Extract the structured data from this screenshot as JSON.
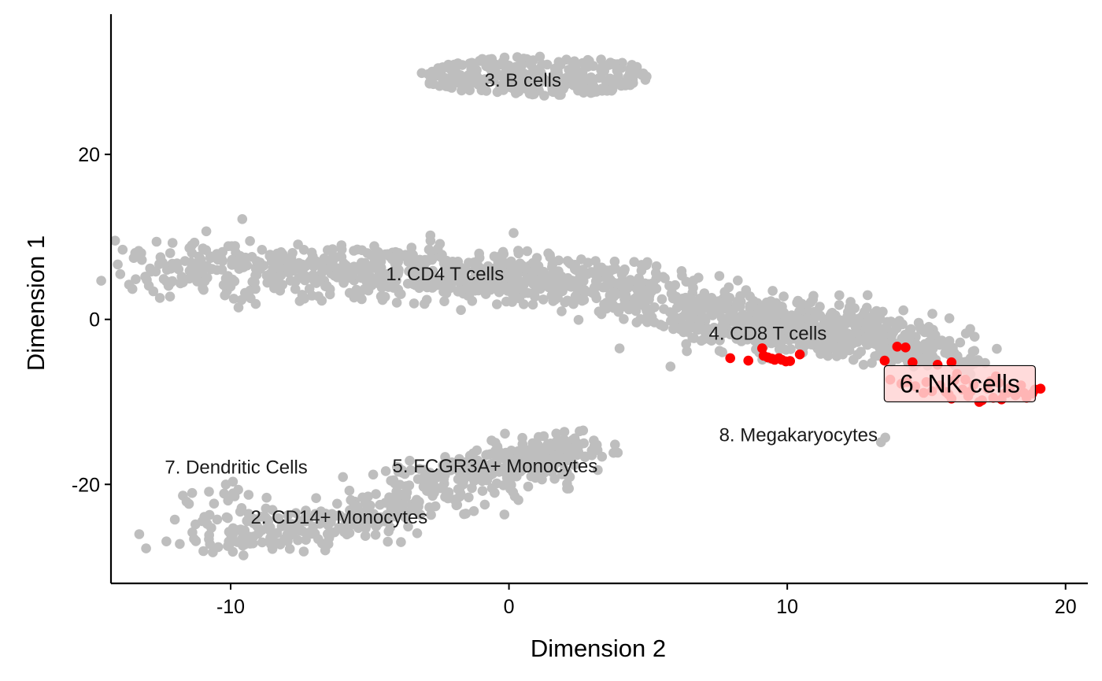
{
  "chart_data": {
    "type": "scatter",
    "xlabel": "Dimension 2",
    "ylabel": "Dimension 1",
    "xlim": [
      -14.3,
      20.8
    ],
    "ylim": [
      -32,
      37
    ],
    "x_ticks": [
      -10,
      0,
      10,
      20
    ],
    "y_ticks": [
      -20,
      0,
      20
    ],
    "x_tick_labels": [
      "-10",
      "0",
      "10",
      "20"
    ],
    "y_tick_labels": [
      "-20",
      "0",
      "20"
    ],
    "grid": false,
    "colors": {
      "background_points": "#bebebe",
      "highlight_points": "#ff0000",
      "highlight_label_fill": "#ffd5d5",
      "axis": "#000000"
    },
    "clusters": [
      {
        "label": "1. CD4 T cells",
        "label_pos": [
          -2.3,
          5.5
        ],
        "shape": "band",
        "path": [
          [
            -12.5,
            6
          ],
          [
            -6,
            6
          ],
          [
            -1,
            5
          ],
          [
            3,
            5
          ],
          [
            8,
            0
          ],
          [
            12,
            -1
          ],
          [
            15,
            -4
          ]
        ],
        "spread": 3.0,
        "n": 1300,
        "highlighted": false
      },
      {
        "label": "4. CD8 T cells",
        "label_pos": [
          9.3,
          -1.7
        ],
        "shape": "band",
        "path": [
          [
            6,
            -1
          ],
          [
            9,
            -2
          ],
          [
            12,
            -3
          ],
          [
            14.5,
            -4
          ],
          [
            17,
            -5
          ]
        ],
        "spread": 1.2,
        "n": 150,
        "highlighted": false
      },
      {
        "label": "3. B cells",
        "label_pos": [
          0.5,
          29
        ],
        "shape": "ellipse",
        "center": [
          1,
          29.5
        ],
        "radius": [
          4.2,
          2.4
        ],
        "n": 300,
        "highlighted": false
      },
      {
        "label": "2. CD14+ Monocytes",
        "label_pos": [
          -6.1,
          -24
        ],
        "shape": "band",
        "path": [
          [
            -11,
            -26
          ],
          [
            -8,
            -26
          ],
          [
            -5,
            -24
          ],
          [
            -2,
            -20
          ],
          [
            1,
            -17
          ],
          [
            2,
            -16
          ]
        ],
        "spread": 2.5,
        "n": 450,
        "highlighted": false
      },
      {
        "label": "5. FCGR3A+ Monocytes",
        "label_pos": [
          -0.5,
          -17.8
        ],
        "shape": "band",
        "path": [
          [
            -5,
            -20
          ],
          [
            -2,
            -18
          ],
          [
            1,
            -16
          ],
          [
            2,
            -15.5
          ]
        ],
        "spread": 1.6,
        "n": 100,
        "highlighted": false
      },
      {
        "label": "7. Dendritic Cells",
        "label_pos": [
          -9.8,
          -17.9
        ],
        "shape": "ellipse",
        "center": [
          -10.2,
          -22
        ],
        "radius": [
          1.6,
          2.5
        ],
        "n": 20,
        "highlighted": false
      },
      {
        "label": "8. Megakaryocytes",
        "label_pos": [
          10.4,
          -14
        ],
        "shape": "ellipse",
        "center": [
          13.5,
          -14.5
        ],
        "radius": [
          0.3,
          0.5
        ],
        "n": 2,
        "highlighted": false
      }
    ],
    "highlight": {
      "label": "6. NK cells",
      "label_pos": [
        16.2,
        -7.8
      ],
      "points": [
        [
          7.95,
          -4.7
        ],
        [
          8.6,
          -5.0
        ],
        [
          9.1,
          -3.5
        ],
        [
          9.15,
          -4.4
        ],
        [
          9.3,
          -4.6
        ],
        [
          9.45,
          -4.75
        ],
        [
          9.55,
          -4.9
        ],
        [
          9.7,
          -4.7
        ],
        [
          9.8,
          -4.9
        ],
        [
          9.95,
          -5.1
        ],
        [
          10.1,
          -5.05
        ],
        [
          10.45,
          -4.25
        ],
        [
          13.95,
          -3.3
        ],
        [
          14.25,
          -3.4
        ],
        [
          13.5,
          -5.0
        ],
        [
          14.5,
          -5.2
        ],
        [
          15.4,
          -5.5
        ],
        [
          15.9,
          -5.2
        ],
        [
          13.7,
          -7.3
        ],
        [
          14.1,
          -7.8
        ],
        [
          14.3,
          -7.6
        ],
        [
          14.6,
          -8.1
        ],
        [
          15.0,
          -7.6
        ],
        [
          15.2,
          -8.7
        ],
        [
          15.5,
          -8.0
        ],
        [
          15.8,
          -9.1
        ],
        [
          16.0,
          -7.4
        ],
        [
          16.3,
          -8.5
        ],
        [
          16.5,
          -9.3
        ],
        [
          16.7,
          -7.9
        ],
        [
          17.0,
          -9.8
        ],
        [
          17.2,
          -8.4
        ],
        [
          17.4,
          -9.5
        ],
        [
          17.6,
          -7.7
        ],
        [
          17.8,
          -9.0
        ],
        [
          18.0,
          -8.3
        ],
        [
          18.2,
          -9.2
        ],
        [
          18.4,
          -8.0
        ],
        [
          18.6,
          -9.5
        ],
        [
          18.9,
          -8.5
        ],
        [
          19.1,
          -8.4
        ],
        [
          16.9,
          -10.0
        ],
        [
          17.5,
          -6.9
        ],
        [
          16.1,
          -6.6
        ],
        [
          18.8,
          -9.0
        ],
        [
          15.7,
          -8.8
        ],
        [
          17.9,
          -8.9
        ],
        [
          16.6,
          -8.7
        ],
        [
          14.9,
          -8.9
        ],
        [
          17.3,
          -7.5
        ],
        [
          18.5,
          -8.9
        ],
        [
          15.9,
          -9.6
        ],
        [
          16.4,
          -7.3
        ],
        [
          17.7,
          -9.7
        ]
      ]
    }
  }
}
